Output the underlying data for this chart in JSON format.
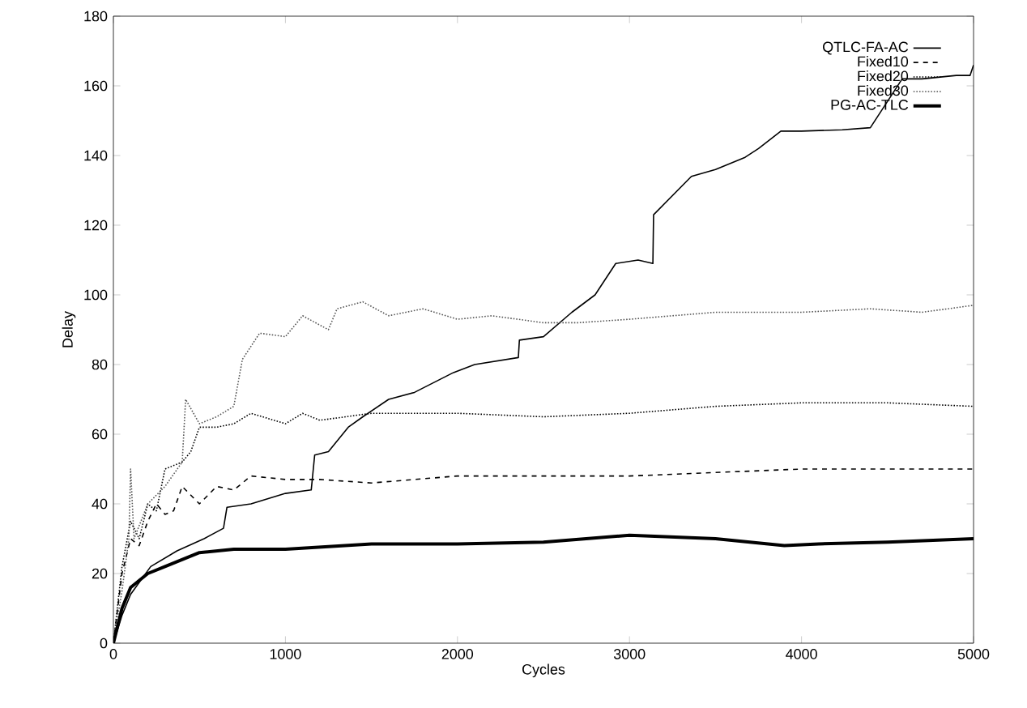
{
  "chart_data": {
    "type": "line",
    "xlabel": "Cycles",
    "ylabel": "Delay",
    "xlim": [
      0,
      5000
    ],
    "ylim": [
      0,
      180
    ],
    "xticks": [
      0,
      1000,
      2000,
      3000,
      4000,
      5000
    ],
    "yticks": [
      0,
      20,
      40,
      60,
      80,
      100,
      120,
      140,
      160,
      180
    ],
    "legend": "top right",
    "grid": false,
    "series": [
      {
        "name": "QTLC-FA-AC",
        "color": "#000000",
        "line_style": "solid",
        "x": [
          0,
          50,
          100,
          217,
          370,
          527,
          640,
          660,
          800,
          1000,
          1150,
          1170,
          1250,
          1365,
          1450,
          1600,
          1750,
          1977,
          2100,
          2354,
          2360,
          2500,
          2665,
          2800,
          2920,
          3050,
          3136,
          3140,
          3360,
          3500,
          3672,
          3750,
          3880,
          4000,
          4237,
          4400,
          4585,
          4700,
          4900,
          4980,
          5000
        ],
        "values": [
          0,
          8,
          14,
          22,
          26.5,
          30,
          33,
          39,
          40,
          43,
          44,
          54,
          55,
          62,
          65,
          70,
          72,
          77.7,
          80,
          82,
          87,
          88,
          95,
          100,
          109,
          110,
          109,
          123,
          134,
          136,
          139.5,
          142,
          147,
          147,
          147.4,
          148,
          162,
          162,
          163,
          163,
          166
        ]
      },
      {
        "name": "Fixed10",
        "color": "#000000",
        "line_style": "dashed",
        "x": [
          0,
          50,
          100,
          150,
          200,
          250,
          300,
          350,
          400,
          500,
          600,
          700,
          800,
          1000,
          1200,
          1500,
          2000,
          2500,
          3000,
          3500,
          4000,
          4500,
          5000
        ],
        "values": [
          0,
          20,
          30,
          28,
          35,
          40,
          37,
          38,
          45,
          40,
          45,
          44,
          48,
          47,
          47,
          46,
          48,
          48,
          48,
          49,
          50,
          50,
          50
        ]
      },
      {
        "name": "Fixed20",
        "color": "#000000",
        "line_style": "dotted",
        "x": [
          0,
          50,
          100,
          150,
          200,
          250,
          300,
          400,
          450,
          500,
          600,
          700,
          800,
          1000,
          1100,
          1200,
          1500,
          2000,
          2500,
          3000,
          3500,
          4000,
          4500,
          5000
        ],
        "values": [
          0,
          22,
          35,
          30,
          40,
          38,
          50,
          52,
          55,
          62,
          62,
          63,
          66,
          63,
          66,
          64,
          66,
          66,
          65,
          66,
          68,
          69,
          69,
          68
        ]
      },
      {
        "name": "Fixed30",
        "color": "#555555",
        "line_style": "dotted",
        "x": [
          0,
          50,
          90,
          100,
          120,
          200,
          300,
          400,
          420,
          500,
          600,
          700,
          750,
          850,
          1000,
          1100,
          1250,
          1300,
          1450,
          1600,
          1800,
          2000,
          2200,
          2500,
          2700,
          3000,
          3500,
          4000,
          4400,
          4700,
          5000
        ],
        "values": [
          0,
          15,
          30,
          50,
          30,
          40,
          45,
          52,
          70,
          63,
          65,
          68,
          81.5,
          89,
          88,
          94,
          90,
          96,
          98,
          94,
          96,
          93,
          94,
          92,
          92,
          93,
          95,
          95,
          96,
          95,
          97
        ]
      },
      {
        "name": "PG-AC-TLC",
        "color": "#000000",
        "line_style": "solid",
        "x": [
          0,
          50,
          100,
          200,
          300,
          400,
          500,
          700,
          1000,
          1500,
          2000,
          2500,
          3000,
          3500,
          3900,
          4100,
          4500,
          5000
        ],
        "values": [
          0,
          10,
          16,
          20,
          22,
          24,
          26,
          27,
          27,
          28.5,
          28.5,
          29,
          31,
          30,
          28,
          28.5,
          29,
          30
        ]
      }
    ]
  }
}
